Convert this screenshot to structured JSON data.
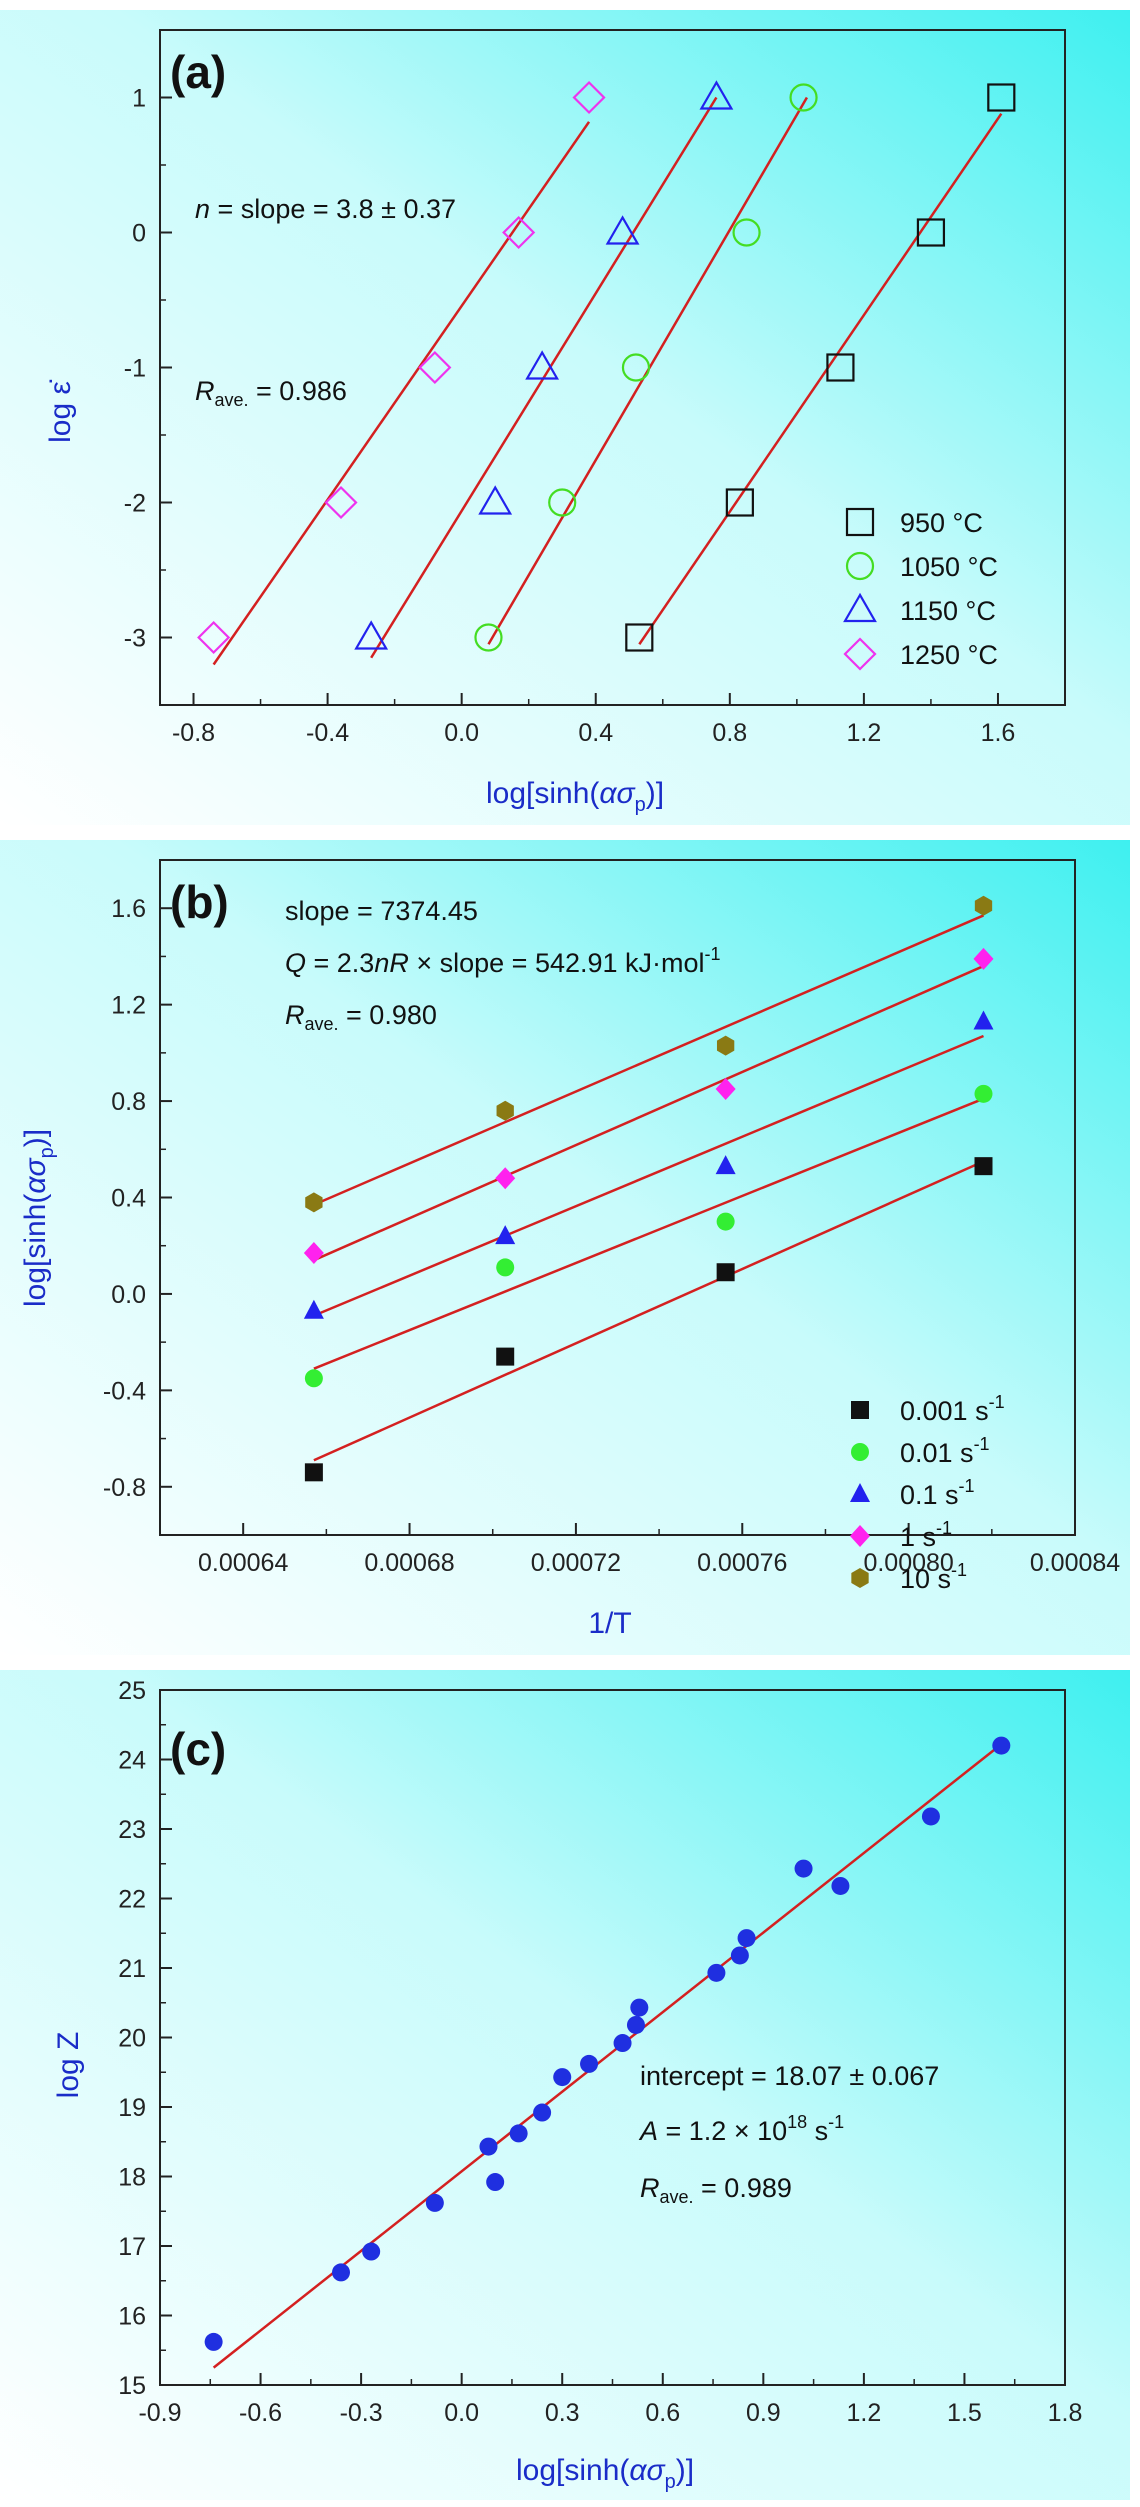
{
  "colors": {
    "fit_line": "#d42020",
    "axis_label": "#1a2cc8",
    "panel_bg_start": "#ffffff",
    "panel_bg_end": "#3ef0f0"
  },
  "chart_data": [
    {
      "type": "scatter",
      "panel_label": "(a)",
      "xlabel": "log[sinh(ασp)]",
      "ylabel": "log ε̇",
      "xlim": [
        -0.9,
        1.8
      ],
      "ylim": [
        -3.5,
        1.5
      ],
      "xticks": [
        "-0.8",
        "-0.4",
        "0.0",
        "0.4",
        "0.8",
        "1.2",
        "1.6"
      ],
      "yticks": [
        "-3",
        "-2",
        "-1",
        "0",
        "1"
      ],
      "annotations": {
        "slope_prefix": "n",
        "slope_text": " = slope = 3.8 ± 0.37",
        "r_main": "R",
        "r_sub": "ave.",
        "r_value": " = 0.986"
      },
      "legend_position": "bottom-right",
      "series": [
        {
          "name": "950 °C",
          "marker": "square",
          "color": "#111111",
          "x": [
            0.53,
            0.83,
            1.13,
            1.4,
            1.61
          ],
          "y": [
            -3,
            -2,
            -1,
            0,
            1
          ],
          "fit": [
            [
              0.53,
              -3.05
            ],
            [
              1.61,
              0.88
            ]
          ]
        },
        {
          "name": "1050 °C",
          "marker": "circle",
          "color": "#44dd22",
          "x": [
            0.08,
            0.3,
            0.52,
            0.85,
            1.02
          ],
          "y": [
            -3,
            -2,
            -1,
            0,
            1
          ],
          "fit": [
            [
              0.08,
              -3.05
            ],
            [
              1.03,
              1.0
            ]
          ]
        },
        {
          "name": "1150 °C",
          "marker": "triangle",
          "color": "#2222ee",
          "x": [
            -0.27,
            0.1,
            0.24,
            0.48,
            0.76
          ],
          "y": [
            -3,
            -2,
            -1,
            0,
            1
          ],
          "fit": [
            [
              -0.27,
              -3.15
            ],
            [
              0.76,
              1.0
            ]
          ]
        },
        {
          "name": "1250 °C",
          "marker": "diamond",
          "color": "#ee33ee",
          "x": [
            -0.74,
            -0.36,
            -0.08,
            0.17,
            0.38
          ],
          "y": [
            -3,
            -2,
            -1,
            0,
            1
          ],
          "fit": [
            [
              -0.74,
              -3.2
            ],
            [
              0.38,
              0.82
            ]
          ]
        }
      ]
    },
    {
      "type": "scatter",
      "panel_label": "(b)",
      "xlabel": "1/T",
      "ylabel": "log[sinh(ασp)]",
      "xlim": [
        0.00062,
        0.00084
      ],
      "ylim": [
        -1.0,
        1.8
      ],
      "xticks": [
        "0.00064",
        "0.00068",
        "0.00072",
        "0.00076",
        "0.00080",
        "0.00084"
      ],
      "yticks": [
        "-0.8",
        "-0.4",
        "0.0",
        "0.4",
        "0.8",
        "1.2",
        "1.6"
      ],
      "annotations": {
        "slope_text": "slope = 7374.45",
        "q_prefix": "Q",
        "q_mid": " = 2.3",
        "q_n": "n",
        "q_r": "R",
        "q_rest": " × slope = 542.91 kJ·mol",
        "q_exp": "-1",
        "r_main": "R",
        "r_sub": "ave.",
        "r_value": " = 0.980"
      },
      "legend_position": "bottom-right",
      "series": [
        {
          "name": "0.001 s",
          "unit_exp": "-1",
          "marker": "square",
          "color": "#111111",
          "x": [
            0.000657,
            0.000703,
            0.000756,
            0.000818
          ],
          "y": [
            -0.74,
            -0.26,
            0.09,
            0.53
          ],
          "fit": [
            [
              0.000657,
              -0.69
            ],
            [
              0.000818,
              0.55
            ]
          ]
        },
        {
          "name": "0.01 s",
          "unit_exp": "-1",
          "marker": "circle",
          "color": "#33ee33",
          "x": [
            0.000657,
            0.000703,
            0.000756,
            0.000818
          ],
          "y": [
            -0.35,
            0.11,
            0.3,
            0.83
          ],
          "fit": [
            [
              0.000657,
              -0.31
            ],
            [
              0.000818,
              0.81
            ]
          ]
        },
        {
          "name": "0.1 s",
          "unit_exp": "-1",
          "marker": "triangle",
          "color": "#2222ee",
          "x": [
            0.000657,
            0.000703,
            0.000756,
            0.000818
          ],
          "y": [
            -0.07,
            0.24,
            0.53,
            1.13
          ],
          "fit": [
            [
              0.000657,
              -0.09
            ],
            [
              0.000818,
              1.07
            ]
          ]
        },
        {
          "name": "1 s",
          "unit_exp": "-1",
          "marker": "diamond",
          "color": "#ff22ee",
          "x": [
            0.000657,
            0.000703,
            0.000756,
            0.000818
          ],
          "y": [
            0.17,
            0.48,
            0.85,
            1.39
          ],
          "fit": [
            [
              0.000657,
              0.14
            ],
            [
              0.000818,
              1.36
            ]
          ]
        },
        {
          "name": "10 s",
          "unit_exp": "-1",
          "marker": "hexagon",
          "color": "#8a7a14",
          "x": [
            0.000657,
            0.000703,
            0.000756,
            0.000818
          ],
          "y": [
            0.38,
            0.76,
            1.03,
            1.61
          ],
          "fit": [
            [
              0.000657,
              0.37
            ],
            [
              0.000818,
              1.57
            ]
          ]
        }
      ]
    },
    {
      "type": "scatter",
      "panel_label": "(c)",
      "xlabel": "log[sinh(ασp)]",
      "ylabel": "log Z",
      "xlim": [
        -0.9,
        1.8
      ],
      "ylim": [
        15,
        25
      ],
      "xticks": [
        "-0.9",
        "-0.6",
        "-0.3",
        "0.0",
        "0.3",
        "0.6",
        "0.9",
        "1.2",
        "1.5",
        "1.8"
      ],
      "yticks": [
        "15",
        "16",
        "17",
        "18",
        "19",
        "20",
        "21",
        "22",
        "23",
        "24",
        "25"
      ],
      "annotations": {
        "intercept_text": "intercept = 18.07 ± 0.067",
        "a_prefix": "A",
        "a_mid": " = 1.2 × 10",
        "a_exp": "18",
        "a_unit": " s",
        "a_unit_exp": "-1",
        "r_main": "R",
        "r_sub": "ave.",
        "r_value": " = 0.989"
      },
      "series": [
        {
          "name": "",
          "marker": "circle-filled",
          "color": "#1f2fe0",
          "x": [
            -0.74,
            -0.36,
            -0.27,
            -0.08,
            0.08,
            0.1,
            0.17,
            0.24,
            0.3,
            0.38,
            0.48,
            0.52,
            0.53,
            0.76,
            0.83,
            0.85,
            1.02,
            1.13,
            1.4,
            1.61
          ],
          "y": [
            15.62,
            16.62,
            16.92,
            17.62,
            18.43,
            17.92,
            18.62,
            18.92,
            19.43,
            19.62,
            19.92,
            20.18,
            20.43,
            20.93,
            21.18,
            21.43,
            22.43,
            22.18,
            23.18,
            24.2
          ],
          "fit": [
            [
              -0.74,
              15.25
            ],
            [
              1.61,
              24.22
            ]
          ]
        }
      ]
    }
  ]
}
